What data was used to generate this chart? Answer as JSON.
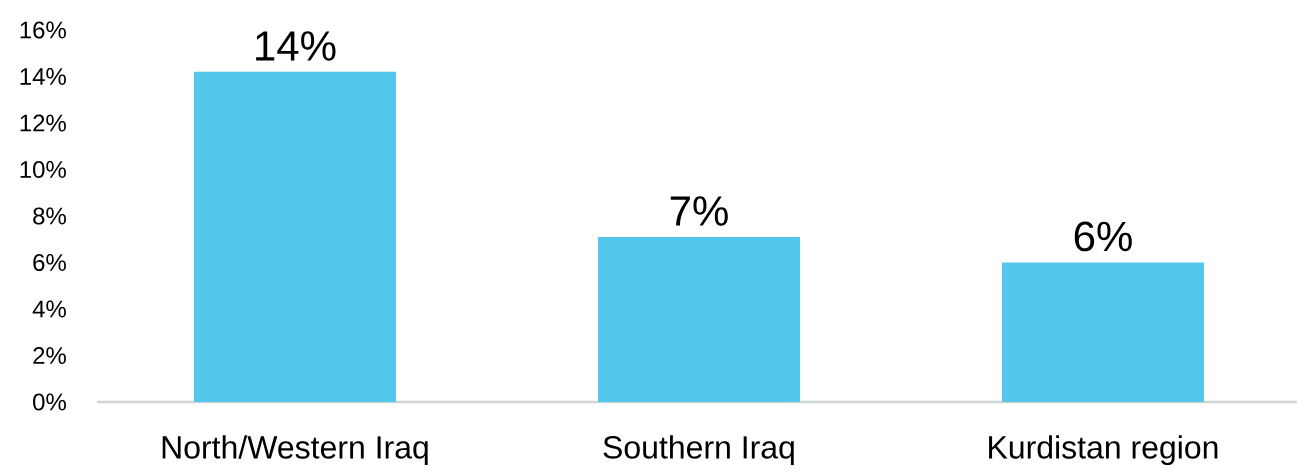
{
  "chart_data": {
    "type": "bar",
    "categories": [
      "North/Western Iraq",
      "Southern Iraq",
      "Kurdistan region"
    ],
    "values": [
      14.2,
      7.1,
      6.0
    ],
    "value_labels": [
      "14%",
      "7%",
      "6%"
    ],
    "color": "#53c8ec",
    "ylim": [
      0,
      16
    ],
    "yticks": [
      {
        "value": 0,
        "label": "0%"
      },
      {
        "value": 2,
        "label": "2%"
      },
      {
        "value": 4,
        "label": "4%"
      },
      {
        "value": 6,
        "label": "6%"
      },
      {
        "value": 8,
        "label": "8%"
      },
      {
        "value": 10,
        "label": "10%"
      },
      {
        "value": 12,
        "label": "12%"
      },
      {
        "value": 14,
        "label": "14%"
      },
      {
        "value": 16,
        "label": "16%"
      }
    ]
  }
}
